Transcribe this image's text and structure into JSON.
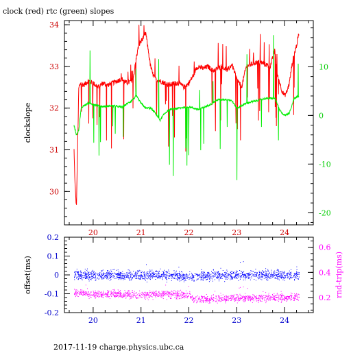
{
  "title": "clock (red) rtc (green) slopes",
  "footer": "2017-11-19  charge.physics.ubc.ca",
  "colors": {
    "clock": "#ff0000",
    "rtc": "#00ee00",
    "offset": "#0000ff",
    "roundtrip": "#ff00ff",
    "axis": "#000000"
  },
  "chart_data": [
    {
      "type": "line",
      "title": "clock (red) rtc (green) slopes",
      "ylabel": "clockslope",
      "x_ticks": [
        "20",
        "21",
        "22",
        "23",
        "24"
      ],
      "xlim": [
        19.4,
        24.6
      ],
      "ylim": [
        29.2,
        34.1
      ],
      "y_ticks": [
        "30",
        "31",
        "32",
        "33",
        "34"
      ],
      "y2lim": [
        -22.5,
        19.5
      ],
      "y2_ticks": [
        "-20",
        "-10",
        "0",
        "10"
      ],
      "grid": false,
      "series": [
        {
          "name": "clock (red)",
          "axis": "left",
          "x": [
            19.6,
            19.62,
            19.65,
            19.7,
            19.75,
            19.8,
            19.9,
            20.0,
            20.1,
            20.2,
            20.3,
            20.4,
            20.5,
            20.6,
            20.7,
            20.8,
            20.85,
            20.9,
            20.95,
            21.0,
            21.05,
            21.1,
            21.15,
            21.2,
            21.25,
            21.3,
            21.4,
            21.5,
            21.6,
            21.7,
            21.8,
            21.9,
            22.0,
            22.1,
            22.15,
            22.2,
            22.3,
            22.4,
            22.5,
            22.6,
            22.7,
            22.8,
            22.9,
            23.0,
            23.1,
            23.2,
            23.3,
            23.4,
            23.5,
            23.6,
            23.7,
            23.75,
            23.8,
            23.85,
            23.9,
            23.95,
            24.0,
            24.05,
            24.1,
            24.15,
            24.2,
            24.25,
            24.3
          ],
          "values": [
            31.0,
            30.2,
            29.6,
            32.5,
            32.6,
            32.55,
            32.65,
            32.6,
            32.5,
            32.6,
            32.55,
            32.6,
            32.65,
            32.7,
            32.6,
            32.65,
            32.8,
            33.2,
            33.5,
            33.6,
            33.7,
            33.8,
            33.4,
            33.0,
            32.8,
            32.7,
            32.65,
            32.6,
            32.55,
            32.6,
            32.6,
            32.5,
            32.6,
            32.8,
            32.95,
            33.0,
            32.95,
            33.0,
            32.9,
            32.95,
            33.0,
            32.9,
            33.05,
            32.7,
            32.5,
            33.0,
            33.05,
            33.1,
            33.1,
            33.05,
            33.0,
            33.2,
            33.4,
            32.8,
            32.6,
            32.4,
            32.3,
            32.4,
            32.6,
            33.0,
            33.3,
            33.5,
            33.8
          ]
        },
        {
          "name": "rtc (green)",
          "axis": "right",
          "x": [
            19.6,
            19.65,
            19.7,
            19.75,
            19.8,
            19.9,
            20.0,
            20.2,
            20.4,
            20.6,
            20.8,
            20.9,
            21.0,
            21.1,
            21.2,
            21.3,
            21.4,
            21.5,
            21.6,
            21.8,
            22.0,
            22.2,
            22.4,
            22.6,
            22.8,
            22.9,
            23.0,
            23.2,
            23.4,
            23.6,
            23.8,
            23.9,
            24.0,
            24.1,
            24.2,
            24.3
          ],
          "values": [
            -2.0,
            -4.0,
            -3.0,
            1.5,
            2.0,
            2.5,
            2.3,
            1.8,
            2.0,
            1.7,
            3.0,
            4.0,
            2.5,
            1.5,
            1.5,
            0.5,
            -1.0,
            0.5,
            1.2,
            1.5,
            1.8,
            1.2,
            2.0,
            3.2,
            3.3,
            3.0,
            1.5,
            2.5,
            3.0,
            3.5,
            3.5,
            1.0,
            0.0,
            0.5,
            3.5,
            4.0
          ]
        }
      ]
    },
    {
      "type": "scatter",
      "ylabel": "offset(ms)",
      "y2label": "rnd-trip(ms)",
      "x_ticks": [
        "20",
        "21",
        "22",
        "23",
        "24"
      ],
      "xlim": [
        19.4,
        24.6
      ],
      "ylim": [
        -0.2,
        0.2
      ],
      "y_ticks": [
        "-0.2",
        "-0.1",
        "0",
        "0.1",
        "0.2"
      ],
      "y2lim": [
        0.08,
        0.68
      ],
      "y2_ticks": [
        "0.2",
        "0.4",
        "0.6"
      ],
      "grid": false,
      "series": [
        {
          "name": "offset",
          "axis": "left",
          "x": [
            19.6,
            20.0,
            20.5,
            21.0,
            21.5,
            22.0,
            22.5,
            23.0,
            23.5,
            24.0,
            24.3
          ],
          "values": [
            0.0,
            0.0,
            0.0,
            0.0,
            0.0,
            -0.01,
            0.0,
            0.0,
            0.0,
            0.0,
            0.0
          ]
        },
        {
          "name": "rnd-trip",
          "axis": "right",
          "x": [
            19.6,
            20.0,
            20.5,
            21.0,
            21.5,
            22.0,
            22.1,
            22.5,
            23.0,
            23.5,
            24.0,
            24.3
          ],
          "values": [
            0.24,
            0.23,
            0.23,
            0.22,
            0.23,
            0.22,
            0.19,
            0.19,
            0.2,
            0.2,
            0.2,
            0.21
          ]
        }
      ]
    }
  ]
}
